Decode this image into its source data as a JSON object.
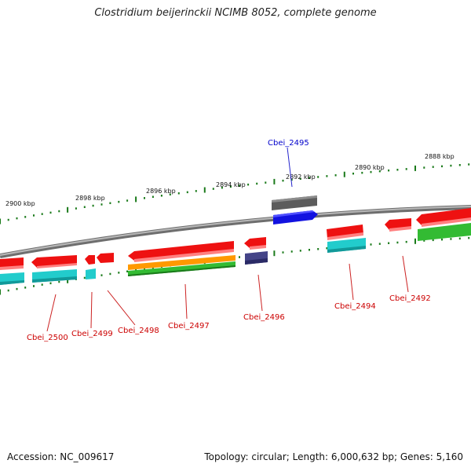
{
  "title": "Clostridium beijerinckii NCIMB 8052, complete genome",
  "footer": {
    "accession": "Accession: NC_009617",
    "topology": "Topology: circular; Length: 6,000,632 bp; Genes: 5,160"
  },
  "kbp_ticks": [
    "2900 kbp",
    "2898 kbp",
    "2896 kbp",
    "2894 kbp",
    "2892 kbp",
    "2890 kbp",
    "2888 kbp"
  ],
  "gene_labels": [
    {
      "id": "Cbei_2500",
      "color": "#cc0000"
    },
    {
      "id": "Cbei_2499",
      "color": "#cc0000"
    },
    {
      "id": "Cbei_2498",
      "color": "#cc0000"
    },
    {
      "id": "Cbei_2497",
      "color": "#cc0000"
    },
    {
      "id": "Cbei_2496",
      "color": "#cc0000"
    },
    {
      "id": "Cbei_2495",
      "color": "#0000cc"
    },
    {
      "id": "Cbei_2494",
      "color": "#cc0000"
    },
    {
      "id": "Cbei_2492",
      "color": "#cc0000"
    }
  ],
  "colors": {
    "red": "#ee1111",
    "cyan": "#22cccc",
    "orange": "#ff9900",
    "green": "#33bb33",
    "blue": "#1111ee",
    "gray": "#666666",
    "navy": "#444488",
    "backbone": "#888888",
    "tick": "#1a7a1a"
  }
}
